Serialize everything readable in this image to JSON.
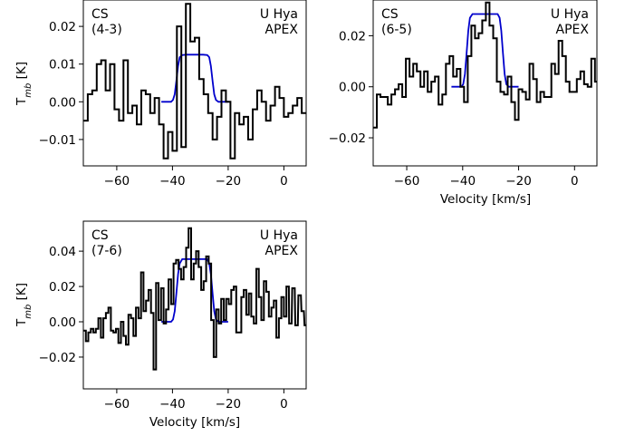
{
  "chart_data": [
    {
      "type": "line",
      "panel": "CS (4-3)",
      "molecule": "CS",
      "transition": "(4-3)",
      "star": "U Hya",
      "telescope": "APEX",
      "xlabel": "",
      "ylabel": "T_mb [K]",
      "xlim": [
        -72,
        8
      ],
      "ylim": [
        -0.017,
        0.027
      ],
      "xticks": [
        -60,
        -40,
        -20,
        0
      ],
      "xtick_labels": [
        "−60",
        "−40",
        "−20",
        "0"
      ],
      "yticks": [
        -0.01,
        0.0,
        0.01,
        0.02
      ],
      "ytick_labels": [
        "−0.01",
        "0.00",
        "0.01",
        "0.02"
      ],
      "series": [
        {
          "role": "spectrum",
          "color": "#000000",
          "channel_width": 1.6,
          "x": [
            -71.2,
            -69.6,
            -68.0,
            -66.4,
            -64.8,
            -63.2,
            -61.6,
            -60.0,
            -58.4,
            -56.8,
            -55.2,
            -53.6,
            -52.0,
            -50.4,
            -48.8,
            -47.2,
            -45.6,
            -44.0,
            -42.4,
            -40.8,
            -39.2,
            -37.6,
            -36.0,
            -34.4,
            -32.8,
            -31.2,
            -29.6,
            -28.0,
            -26.4,
            -24.8,
            -23.2,
            -21.6,
            -20.0,
            -18.4,
            -16.8,
            -15.2,
            -13.6,
            -12.0,
            -10.4,
            -8.8,
            -7.2,
            -5.6,
            -4.0,
            -2.4,
            -0.8,
            0.8,
            2.4,
            4.0,
            5.6,
            7.2
          ],
          "y": [
            -0.005,
            0.002,
            0.003,
            0.01,
            0.011,
            0.003,
            0.01,
            -0.002,
            -0.005,
            0.011,
            -0.003,
            -0.001,
            -0.006,
            0.003,
            0.002,
            -0.003,
            0.001,
            -0.006,
            -0.015,
            -0.008,
            -0.013,
            0.02,
            -0.012,
            0.026,
            0.016,
            0.017,
            0.006,
            0.002,
            -0.003,
            -0.01,
            -0.004,
            0.003,
            0.0,
            -0.015,
            -0.003,
            -0.006,
            -0.004,
            -0.01,
            -0.002,
            0.003,
            0.0,
            -0.005,
            -0.001,
            0.004,
            0.001,
            -0.004,
            -0.003,
            -0.001,
            0.001,
            -0.003
          ]
        },
        {
          "role": "fit",
          "color": "#0000cc",
          "x": [
            -44.0,
            -40.5,
            -39.8,
            -39.2,
            -38.6,
            -38.0,
            -37.4,
            -36.5,
            -35.0,
            -32.0,
            -29.0,
            -27.5,
            -26.8,
            -26.2,
            -25.6,
            -25.0,
            -24.4,
            -23.5,
            -20.0
          ],
          "y": [
            0.0,
            0.0,
            0.0005,
            0.002,
            0.0055,
            0.0095,
            0.0118,
            0.0124,
            0.0125,
            0.0125,
            0.0125,
            0.0124,
            0.0118,
            0.0095,
            0.0055,
            0.002,
            0.0005,
            0.0,
            0.0
          ]
        }
      ]
    },
    {
      "type": "line",
      "panel": "CS (6-5)",
      "molecule": "CS",
      "transition": "(6-5)",
      "star": "U Hya",
      "telescope": "APEX",
      "xlabel": "Velocity [km/s]",
      "ylabel": "",
      "xlim": [
        -72,
        8
      ],
      "ylim": [
        -0.031,
        0.034
      ],
      "xticks": [
        -60,
        -40,
        -20,
        0
      ],
      "xtick_labels": [
        "−60",
        "−40",
        "−20",
        "0"
      ],
      "yticks": [
        -0.02,
        0.0,
        0.02
      ],
      "ytick_labels": [
        "−0.02",
        "0.00",
        "0.02"
      ],
      "series": [
        {
          "role": "spectrum",
          "color": "#000000",
          "channel_width": 1.3,
          "x": [
            -71.35,
            -70.05,
            -68.75,
            -67.45,
            -66.15,
            -64.85,
            -63.55,
            -62.25,
            -60.95,
            -59.65,
            -58.35,
            -57.05,
            -55.75,
            -54.45,
            -53.15,
            -51.85,
            -50.55,
            -49.25,
            -47.95,
            -46.65,
            -45.35,
            -44.05,
            -42.75,
            -41.45,
            -40.15,
            -38.85,
            -37.55,
            -36.25,
            -34.95,
            -33.65,
            -32.35,
            -31.05,
            -29.75,
            -28.45,
            -27.15,
            -25.85,
            -24.55,
            -23.25,
            -21.95,
            -20.65,
            -19.35,
            -18.05,
            -16.75,
            -15.45,
            -14.15,
            -12.85,
            -11.55,
            -10.25,
            -8.95,
            -7.65,
            -6.35,
            -5.05,
            -3.75,
            -2.45,
            -1.15,
            0.15,
            1.45,
            2.75,
            4.05,
            5.35,
            6.65,
            7.95
          ],
          "y": [
            -0.016,
            -0.003,
            -0.004,
            -0.004,
            -0.007,
            -0.003,
            -0.001,
            0.001,
            -0.004,
            0.011,
            0.004,
            0.009,
            0.006,
            0.0,
            0.006,
            -0.002,
            0.002,
            0.004,
            -0.007,
            -0.003,
            0.009,
            0.012,
            0.004,
            0.007,
            0.0,
            -0.006,
            0.012,
            0.024,
            0.019,
            0.021,
            0.026,
            0.033,
            0.024,
            0.019,
            0.002,
            -0.002,
            -0.003,
            0.004,
            -0.006,
            -0.013,
            -0.001,
            -0.002,
            -0.005,
            0.009,
            0.003,
            -0.006,
            -0.002,
            -0.004,
            -0.004,
            0.009,
            0.005,
            0.018,
            0.012,
            0.002,
            -0.002,
            -0.002,
            0.003,
            0.006,
            0.001,
            0.0,
            0.011,
            0.002
          ]
        },
        {
          "role": "fit",
          "color": "#0000cc",
          "x": [
            -44.0,
            -40.5,
            -39.8,
            -39.2,
            -38.6,
            -38.0,
            -37.4,
            -36.5,
            -35.0,
            -32.0,
            -29.0,
            -27.5,
            -26.8,
            -26.2,
            -25.6,
            -25.0,
            -24.4,
            -23.5,
            -20.0
          ],
          "y": [
            0.0,
            0.0,
            0.001,
            0.005,
            0.013,
            0.022,
            0.027,
            0.0285,
            0.0285,
            0.0285,
            0.0285,
            0.0285,
            0.027,
            0.022,
            0.013,
            0.005,
            0.001,
            0.0,
            0.0
          ]
        }
      ]
    },
    {
      "type": "line",
      "panel": "CS (7-6)",
      "molecule": "CS",
      "transition": "(7-6)",
      "star": "U Hya",
      "telescope": "APEX",
      "xlabel": "Velocity [km/s]",
      "ylabel": "T_mb [K]",
      "xlim": [
        -72,
        8
      ],
      "ylim": [
        -0.038,
        0.057
      ],
      "xticks": [
        -60,
        -40,
        -20,
        0
      ],
      "xtick_labels": [
        "−60",
        "−40",
        "−20",
        "0"
      ],
      "yticks": [
        -0.02,
        0.0,
        0.02,
        0.04
      ],
      "ytick_labels": [
        "−0.02",
        "0.00",
        "0.02",
        "0.04"
      ],
      "series": [
        {
          "role": "spectrum",
          "color": "#000000",
          "channel_width": 0.9,
          "x": [
            -71.55,
            -70.65,
            -69.75,
            -68.85,
            -67.95,
            -67.05,
            -66.15,
            -65.25,
            -64.35,
            -63.45,
            -62.55,
            -61.65,
            -60.75,
            -59.85,
            -58.95,
            -58.05,
            -57.15,
            -56.25,
            -55.35,
            -54.45,
            -53.55,
            -52.65,
            -51.75,
            -50.85,
            -49.95,
            -49.05,
            -48.15,
            -47.25,
            -46.35,
            -45.45,
            -44.55,
            -43.65,
            -42.75,
            -41.85,
            -40.95,
            -40.05,
            -39.15,
            -38.25,
            -37.35,
            -36.45,
            -35.55,
            -34.65,
            -33.75,
            -32.85,
            -31.95,
            -31.05,
            -30.15,
            -29.25,
            -28.35,
            -27.45,
            -26.55,
            -25.65,
            -24.75,
            -23.85,
            -22.95,
            -22.05,
            -21.15,
            -20.25,
            -19.35,
            -18.45,
            -17.55,
            -16.65,
            -15.75,
            -14.85,
            -13.95,
            -13.05,
            -12.15,
            -11.25,
            -10.35,
            -9.45,
            -8.55,
            -7.65,
            -6.75,
            -5.85,
            -4.95,
            -4.05,
            -3.15,
            -2.25,
            -1.35,
            -0.45,
            0.45,
            1.35,
            2.35,
            3.45,
            4.55,
            5.65,
            6.75,
            7.85
          ],
          "y": [
            -0.005,
            -0.011,
            -0.006,
            -0.004,
            -0.006,
            -0.004,
            0.002,
            -0.009,
            0.002,
            0.005,
            0.008,
            -0.005,
            -0.006,
            -0.004,
            -0.012,
            0.0,
            -0.008,
            -0.013,
            0.004,
            0.002,
            -0.008,
            0.008,
            0.002,
            0.028,
            0.006,
            0.012,
            0.018,
            0.005,
            -0.027,
            0.022,
            0.001,
            0.019,
            -0.001,
            0.007,
            0.024,
            0.01,
            0.033,
            0.035,
            0.03,
            0.024,
            0.031,
            0.042,
            0.053,
            0.024,
            0.033,
            0.04,
            0.031,
            0.018,
            0.023,
            0.037,
            0.033,
            0.001,
            -0.02,
            0.007,
            -0.001,
            0.013,
            0.001,
            0.013,
            0.01,
            0.018,
            0.02,
            -0.006,
            -0.006,
            0.014,
            0.018,
            0.004,
            0.016,
            0.003,
            -0.001,
            0.03,
            0.014,
            0.001,
            0.023,
            0.017,
            0.003,
            0.008,
            0.012,
            -0.009,
            0.002,
            0.014,
            0.003,
            0.02,
            -0.001,
            0.019,
            -0.002,
            0.015,
            0.006,
            -0.002
          ]
        },
        {
          "role": "fit",
          "color": "#0000cc",
          "x": [
            -44.0,
            -40.5,
            -39.8,
            -39.2,
            -38.6,
            -38.0,
            -37.4,
            -36.5,
            -35.0,
            -32.0,
            -29.0,
            -27.5,
            -26.8,
            -26.2,
            -25.6,
            -25.0,
            -24.4,
            -23.5,
            -20.0
          ],
          "y": [
            0.0,
            0.0,
            0.0013,
            0.006,
            0.016,
            0.027,
            0.033,
            0.0355,
            0.0355,
            0.0355,
            0.0355,
            0.0355,
            0.033,
            0.027,
            0.016,
            0.006,
            0.0013,
            0.0,
            0.0
          ]
        }
      ]
    }
  ]
}
